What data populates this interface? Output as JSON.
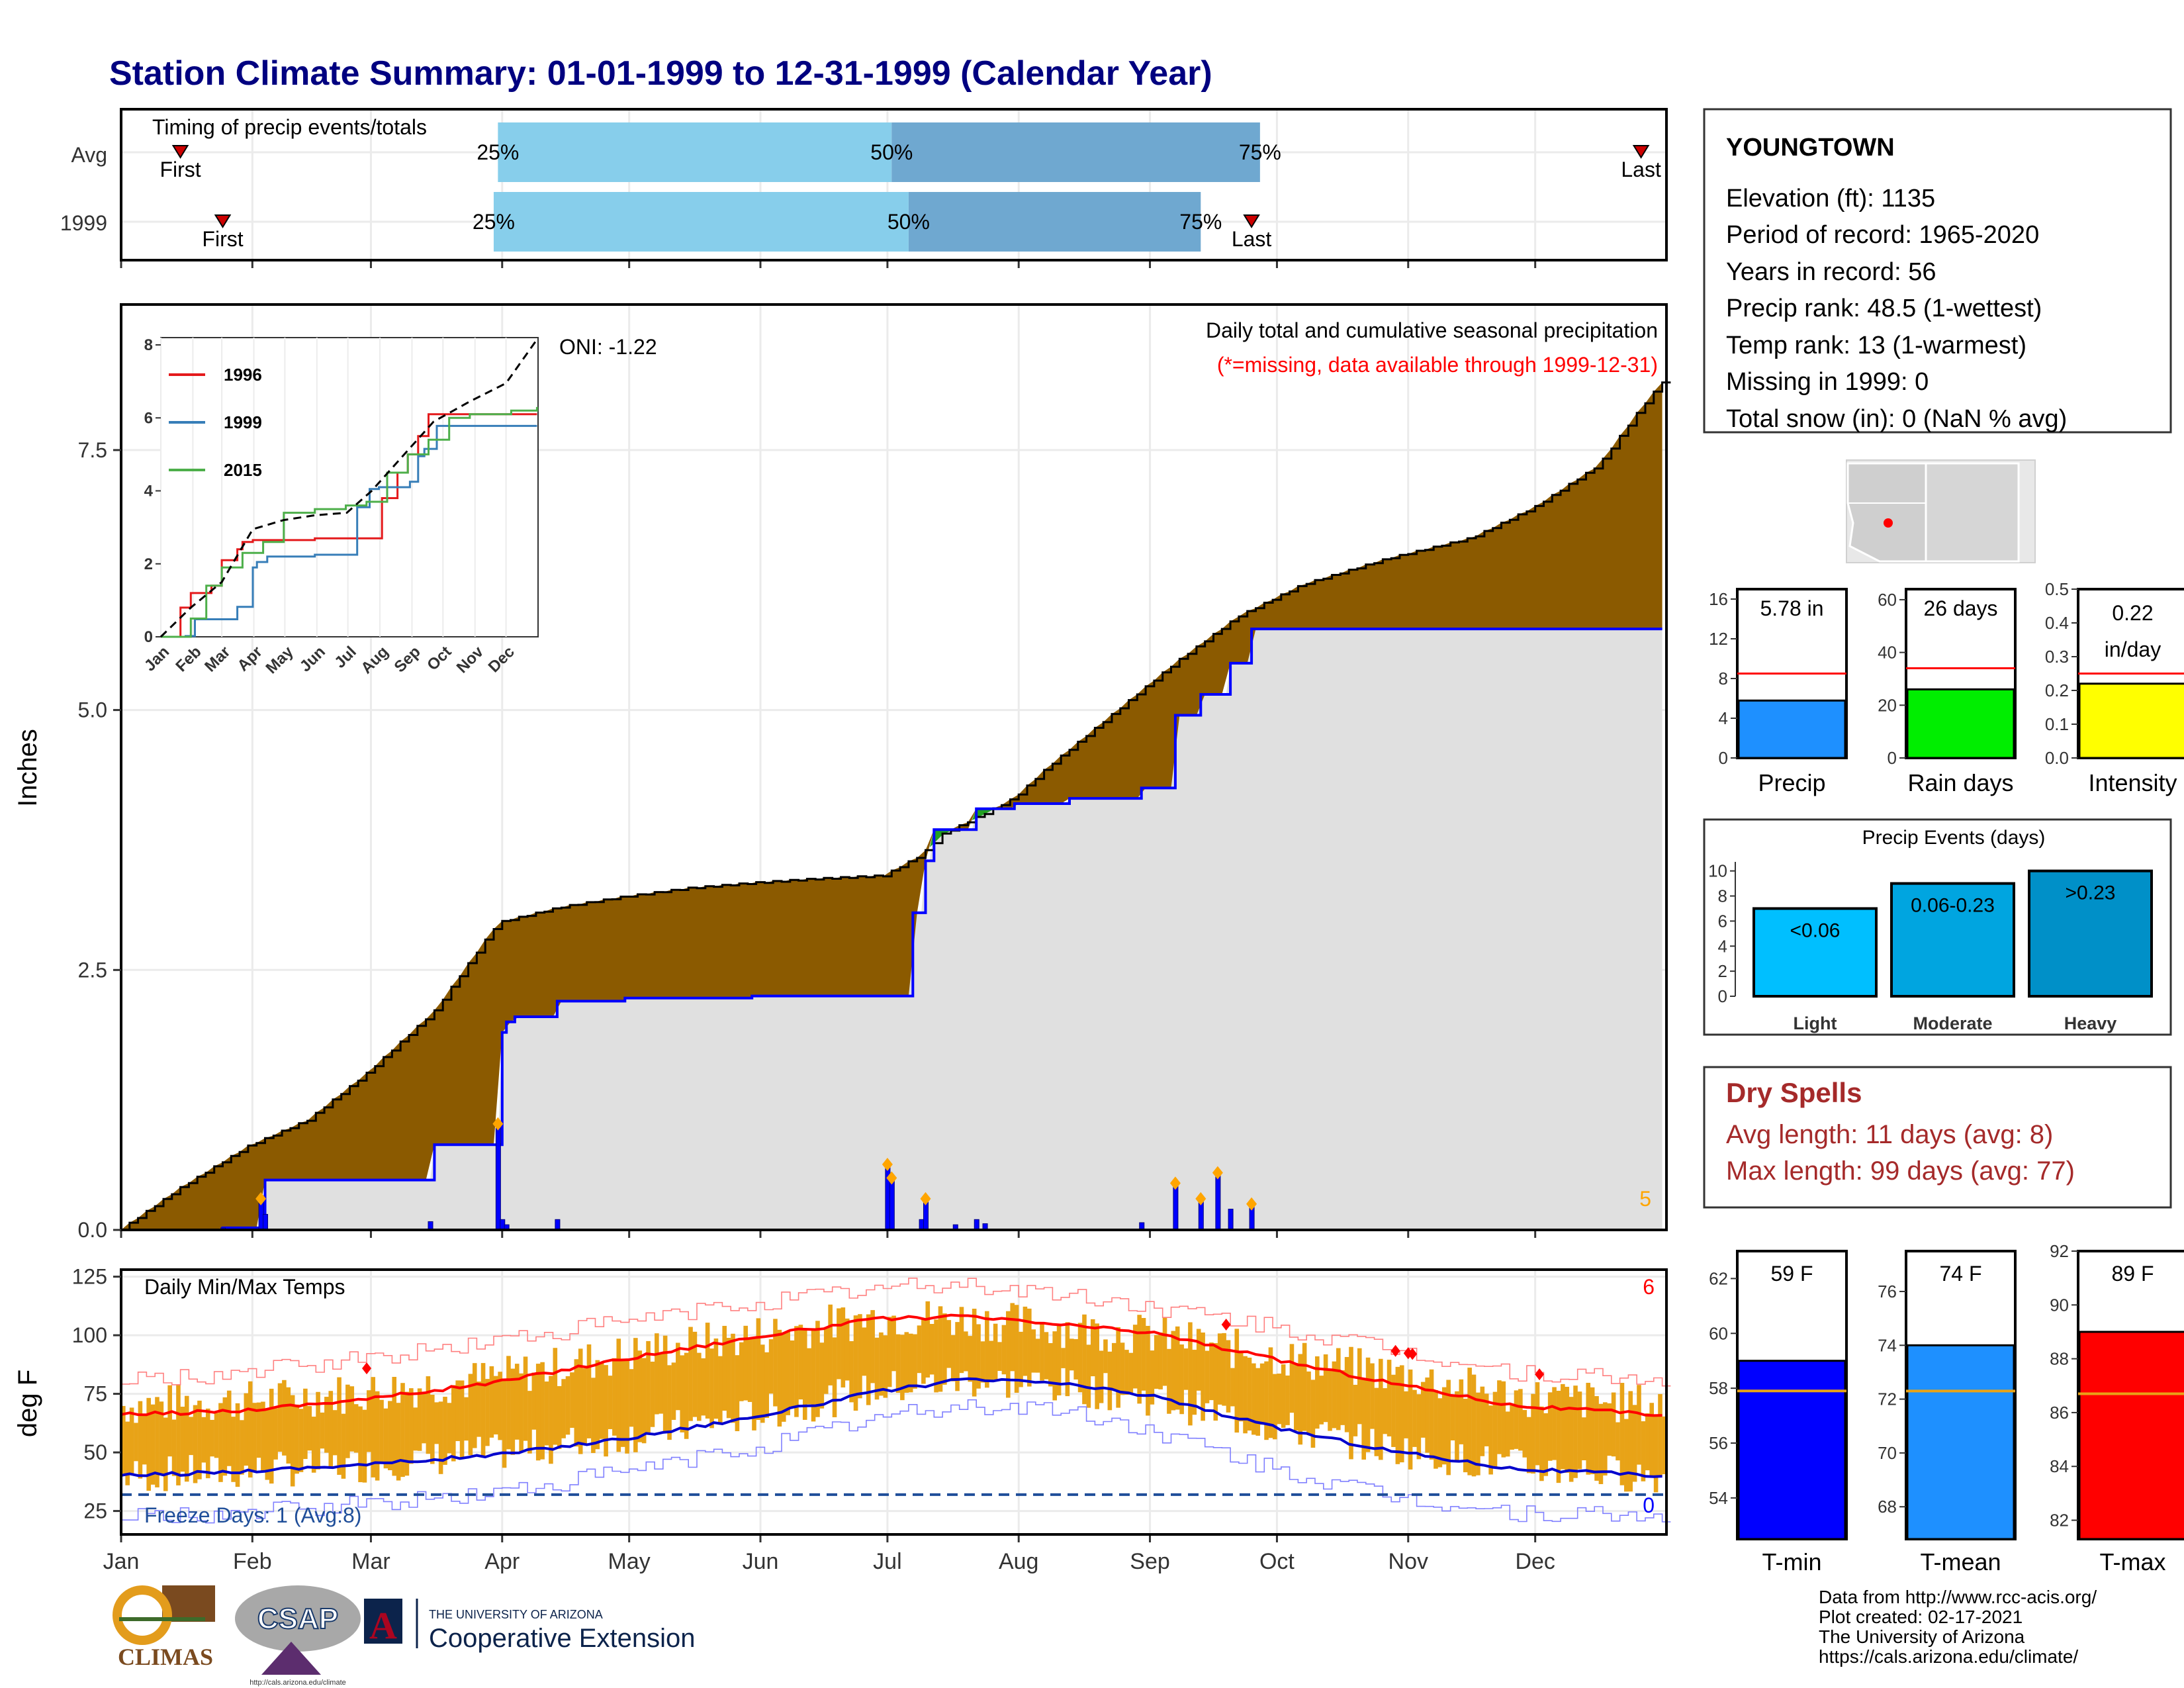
{
  "title": "Station Climate Summary: 01-01-1999 to 12-31-1999 (Calendar Year)",
  "months": [
    "Jan",
    "Feb",
    "Mar",
    "Apr",
    "May",
    "Jun",
    "Jul",
    "Aug",
    "Sep",
    "Oct",
    "Nov",
    "Dec"
  ],
  "timing": {
    "label": "Timing of precip events/totals",
    "rows": [
      {
        "name": "Avg",
        "first": "First",
        "last": "Last",
        "q25": "25%",
        "q50": "50%",
        "q75": "75%",
        "first_doy": 15,
        "q25_doy": 90,
        "q50_doy": 183,
        "q75_doy": 270,
        "last_doy": 360
      },
      {
        "name": "1999",
        "first": "First",
        "last": "Last",
        "q25": "25%",
        "q50": "50%",
        "q75": "75%",
        "first_doy": 25,
        "q25_doy": 89,
        "q50_doy": 187,
        "q75_doy": 256,
        "last_doy": 268
      }
    ]
  },
  "precip": {
    "ylabel": "Inches",
    "oni": "ONI: -1.22",
    "caption1": "Daily total and cumulative seasonal precipitation",
    "caption2": "(*=missing, data available through 1999-12-31)",
    "corner": "5",
    "yticks": [
      "0.0",
      "2.5",
      "5.0",
      "7.5"
    ],
    "ylim": [
      0,
      8.9
    ],
    "chart_data": {
      "type": "area",
      "x_unit": "day of year",
      "series": [
        {
          "name": "cumulative average",
          "x": [
            1,
            15,
            31,
            45,
            59,
            75,
            90,
            105,
            120,
            135,
            150,
            165,
            181,
            190,
            195,
            205,
            212,
            220,
            235,
            250,
            265,
            280,
            300,
            320,
            335,
            350,
            360,
            365
          ],
          "values": [
            0,
            0.4,
            0.8,
            1.05,
            1.5,
            2.1,
            2.95,
            3.1,
            3.2,
            3.28,
            3.33,
            3.37,
            3.4,
            3.6,
            3.8,
            4.0,
            4.15,
            4.45,
            4.95,
            5.45,
            5.9,
            6.2,
            6.45,
            6.65,
            6.95,
            7.35,
            7.9,
            8.15
          ]
        },
        {
          "name": "cumulative 1999",
          "x": [
            1,
            25,
            34,
            35,
            59,
            75,
            90,
            91,
            92,
            94,
            104,
            120,
            150,
            174,
            187,
            188,
            191,
            193,
            198,
            203,
            212,
            225,
            242,
            250,
            256,
            263,
            268,
            365
          ],
          "values": [
            0,
            0.02,
            0.05,
            0.48,
            0.48,
            0.82,
            0.82,
            1.9,
            2.0,
            2.05,
            2.2,
            2.23,
            2.25,
            2.25,
            2.25,
            3.05,
            3.55,
            3.85,
            3.85,
            4.05,
            4.1,
            4.15,
            4.25,
            4.95,
            5.15,
            5.45,
            5.78,
            5.78
          ]
        }
      ],
      "daily_bars": {
        "x": [
          25,
          34,
          35,
          74,
          90,
          91,
          92,
          104,
          182,
          183,
          190,
          191,
          198,
          203,
          205,
          242,
          250,
          256,
          260,
          263,
          268
        ],
        "values": [
          0.02,
          0.3,
          0.15,
          0.08,
          1.02,
          0.1,
          0.05,
          0.1,
          0.63,
          0.5,
          0.1,
          0.3,
          0.05,
          0.1,
          0.06,
          0.07,
          0.45,
          0.3,
          0.55,
          0.2,
          0.25
        ]
      }
    }
  },
  "inset": {
    "yticks": [
      "0",
      "2",
      "4",
      "6",
      "8"
    ],
    "xticks": [
      "Jan",
      "Feb",
      "Mar",
      "Apr",
      "May",
      "Jun",
      "Jul",
      "Aug",
      "Sep",
      "Oct",
      "Nov",
      "Dec"
    ],
    "chart_data": {
      "type": "line",
      "x_unit": "day of year",
      "ylim": [
        0,
        8.2
      ],
      "series": [
        {
          "name": "1996",
          "color": "#e41a1c",
          "x": [
            1,
            20,
            30,
            50,
            60,
            75,
            80,
            90,
            150,
            210,
            215,
            230,
            240,
            250,
            260,
            290,
            365
          ],
          "values": [
            0,
            0.8,
            1.2,
            1.4,
            2.1,
            2.4,
            2.6,
            2.65,
            2.7,
            2.7,
            3.8,
            4.5,
            5.0,
            5.5,
            6.1,
            6.1,
            6.1
          ]
        },
        {
          "name": "1999",
          "color": "#377eb8",
          "x": [
            1,
            25,
            34,
            59,
            75,
            90,
            94,
            104,
            150,
            187,
            191,
            203,
            212,
            242,
            250,
            256,
            268,
            365
          ],
          "values": [
            0,
            0.02,
            0.48,
            0.48,
            0.82,
            1.9,
            2.05,
            2.2,
            2.25,
            2.25,
            3.55,
            4.05,
            4.1,
            4.25,
            4.95,
            5.15,
            5.78,
            5.78
          ]
        },
        {
          "name": "2015",
          "color": "#4daf4a",
          "x": [
            1,
            30,
            45,
            60,
            80,
            100,
            120,
            150,
            180,
            200,
            220,
            240,
            260,
            280,
            300,
            340,
            365
          ],
          "values": [
            0,
            0.5,
            1.4,
            1.9,
            2.3,
            2.6,
            3.4,
            3.5,
            3.6,
            3.7,
            4.5,
            5.0,
            5.4,
            6.0,
            6.1,
            6.2,
            6.3
          ]
        },
        {
          "name": "average",
          "color": "#000000",
          "dash": true,
          "x": [
            1,
            30,
            60,
            90,
            120,
            150,
            181,
            205,
            235,
            265,
            300,
            335,
            365
          ],
          "values": [
            0,
            0.8,
            1.5,
            2.95,
            3.2,
            3.33,
            3.4,
            4.0,
            4.95,
            5.9,
            6.45,
            6.95,
            8.15
          ]
        }
      ]
    }
  },
  "temps": {
    "ylabel": "deg F",
    "title": "Daily Min/Max Temps",
    "corner_top": "6",
    "corner_bottom": "0",
    "freeze": "Freeze Days: 1 (Avg:8)",
    "yticks": [
      "25",
      "50",
      "75",
      "100",
      "125"
    ],
    "ylim": [
      15,
      128
    ],
    "freeze_line": 32,
    "chart_data": {
      "type": "line",
      "x_unit": "day of year",
      "series": [
        {
          "name": "avg max",
          "x": [
            1,
            30,
            60,
            90,
            120,
            150,
            180,
            200,
            220,
            245,
            270,
            300,
            330,
            365
          ],
          "values": [
            66,
            68,
            73,
            80,
            90,
            99,
            107,
            108,
            105,
            101,
            91,
            80,
            70,
            66
          ]
        },
        {
          "name": "avg min",
          "x": [
            1,
            30,
            60,
            90,
            120,
            150,
            180,
            200,
            220,
            245,
            270,
            300,
            330,
            365
          ],
          "values": [
            40,
            42,
            45,
            49,
            56,
            65,
            76,
            81,
            80,
            74,
            62,
            51,
            43,
            40
          ]
        },
        {
          "name": "record max",
          "x": [
            1,
            30,
            60,
            90,
            120,
            150,
            180,
            200,
            220,
            245,
            270,
            300,
            330,
            365
          ],
          "values": [
            80,
            84,
            90,
            98,
            106,
            114,
            120,
            122,
            118,
            112,
            104,
            94,
            84,
            80
          ]
        },
        {
          "name": "record min",
          "x": [
            1,
            30,
            60,
            90,
            120,
            150,
            180,
            200,
            220,
            245,
            270,
            300,
            330,
            365
          ],
          "values": [
            22,
            24,
            28,
            33,
            42,
            52,
            65,
            70,
            69,
            59,
            44,
            31,
            24,
            22
          ]
        },
        {
          "name": "1999 max",
          "x": [
            1,
            30,
            60,
            90,
            120,
            150,
            180,
            200,
            220,
            245,
            270,
            300,
            330,
            365
          ],
          "values": [
            70,
            72,
            76,
            82,
            92,
            100,
            108,
            107,
            104,
            100,
            92,
            84,
            74,
            70
          ]
        },
        {
          "name": "1999 min",
          "x": [
            1,
            30,
            60,
            90,
            120,
            150,
            180,
            200,
            220,
            245,
            270,
            300,
            330,
            365
          ],
          "values": [
            40,
            42,
            45,
            50,
            57,
            66,
            77,
            81,
            79,
            73,
            62,
            52,
            44,
            40
          ]
        }
      ],
      "record_highs_x": [
        59,
        262,
        302,
        305,
        306,
        336
      ]
    }
  },
  "station": {
    "name": "YOUNGTOWN",
    "lines": [
      "Elevation (ft): 1135",
      "Period of record: 1965-2020",
      "Years in record: 56",
      "Precip rank: 48.5 (1-wettest)",
      "Temp rank: 13 (1-warmest)",
      "Missing in 1999: 0",
      "Total snow (in): 0 (NaN % avg)"
    ]
  },
  "summary_bars": [
    {
      "label": "Precip",
      "value_text": "5.78 in",
      "value": 5.78,
      "avg": 8.5,
      "ymax": 17,
      "yticks": [
        "0",
        "4",
        "8",
        "12",
        "16"
      ],
      "tickvals": [
        0,
        4,
        8,
        12,
        16
      ],
      "color": "#1e90ff"
    },
    {
      "label": "Rain days",
      "value_text": "26 days",
      "value": 26,
      "avg": 34,
      "ymax": 64,
      "yticks": [
        "0",
        "20",
        "40",
        "60"
      ],
      "tickvals": [
        0,
        20,
        40,
        60
      ],
      "color": "#00ee00"
    },
    {
      "label": "Intensity",
      "value_text": "0.22 in/day",
      "value_line1": "0.22",
      "value_line2": "in/day",
      "value": 0.22,
      "avg": 0.25,
      "ymax": 0.5,
      "yticks": [
        "0.0",
        "0.1",
        "0.2",
        "0.3",
        "0.4",
        "0.5"
      ],
      "tickvals": [
        0,
        0.1,
        0.2,
        0.3,
        0.4,
        0.5
      ],
      "color": "#ffff00"
    }
  ],
  "events": {
    "title": "Precip Events (days)",
    "yticks": [
      "0",
      "2",
      "4",
      "6",
      "8",
      "10"
    ],
    "chart_data": {
      "type": "bar",
      "categories": [
        "Light",
        "Moderate",
        "Heavy"
      ],
      "values": [
        7,
        9,
        10
      ],
      "labels": [
        "<0.06",
        "0.06-0.23",
        ">0.23"
      ],
      "colors": [
        "#00bfff",
        "#00a5e0",
        "#0090c8"
      ]
    }
  },
  "dry_spells": {
    "title": "Dry Spells",
    "line1": "Avg length: 11 days (avg: 8)",
    "line2": "Max length: 99 days (avg: 77)",
    "color": "#a52a2a"
  },
  "temp_bars": [
    {
      "label": "T-min",
      "value_text": "59 F",
      "value": 59,
      "avg": 57.9,
      "ymin": 52.5,
      "ymax": 63,
      "yticks": [
        "54",
        "56",
        "58",
        "60",
        "62"
      ],
      "tickvals": [
        54,
        56,
        58,
        60,
        62
      ],
      "color": "#0000ff"
    },
    {
      "label": "T-mean",
      "value_text": "74 F",
      "value": 74,
      "avg": 72.3,
      "ymin": 66.8,
      "ymax": 77.5,
      "yticks": [
        "68",
        "70",
        "72",
        "74",
        "76"
      ],
      "tickvals": [
        68,
        70,
        72,
        74,
        76
      ],
      "color": "#1e90ff"
    },
    {
      "label": "T-max",
      "value_text": "89 F",
      "value": 89,
      "avg": 86.7,
      "ymin": 81.3,
      "ymax": 92,
      "yticks": [
        "82",
        "84",
        "86",
        "88",
        "90",
        "92"
      ],
      "tickvals": [
        82,
        84,
        86,
        88,
        90,
        92
      ],
      "color": "#ff0000"
    }
  ],
  "footer": {
    "lines": [
      "Data from http://www.rcc-acis.org/",
      "Plot created: 02-17-2021",
      "The University of Arizona",
      "https://cals.arizona.edu/climate/"
    ],
    "logos": {
      "climas": "CLIMAS",
      "csap": "CSAP",
      "csap_url": "http://cals.arizona.edu/climate",
      "ua_small": "THE UNIVERSITY OF ARIZONA",
      "ua_big": "Cooperative Extension"
    }
  },
  "colors": {
    "brown": "#8b5a00",
    "grey": "#e0e0e0",
    "blue": "#0000ff",
    "orange": "#ffa500",
    "gold": "#e8a317",
    "red": "#ff0000",
    "navy": "#000080"
  }
}
